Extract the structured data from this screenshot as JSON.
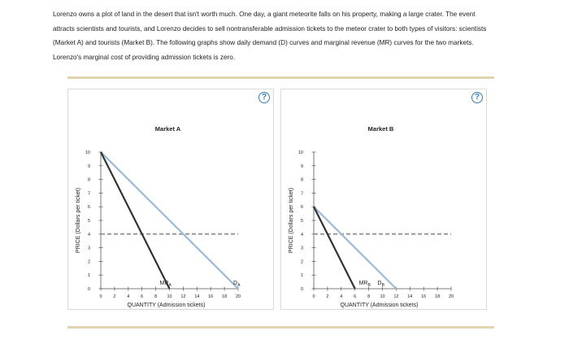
{
  "intro_lines": [
    "Lorenzo owns a plot of land in the desert that isn't worth much. One day, a giant meteorite falls on his property, making a large crater. The event",
    "attracts scientists and tourists, and Lorenzo decides to sell nontransferable admission tickets to the meteor crater to both types of visitors: scientists",
    "(Market A) and tourists (Market B). The following graphs show daily demand (D) curves and marginal revenue (MR) curves for the two markets.",
    "Lorenzo's marginal cost of providing admission tickets is zero."
  ],
  "help_label": "?",
  "colors": {
    "demand": "#9dbad5",
    "mr": "#333333",
    "price_line": "#9a9a9a",
    "axis": "#555555",
    "rule": "#e2d4ae",
    "help": "#3c78b4"
  },
  "chart_data": [
    {
      "type": "line",
      "title": "Market A",
      "xlabel": "QUANTITY (Admission tickets)",
      "ylabel": "PRICE (Dollars per ticket)",
      "xlim": [
        0,
        20
      ],
      "ylim": [
        0,
        10
      ],
      "xticks": [
        0,
        2,
        4,
        6,
        8,
        10,
        12,
        14,
        16,
        18,
        20
      ],
      "yticks": [
        0,
        1,
        2,
        3,
        4,
        5,
        6,
        7,
        8,
        9,
        10
      ],
      "grid": false,
      "series": [
        {
          "name": "D",
          "subscript": "A",
          "kind": "demand",
          "x": [
            0,
            20
          ],
          "y": [
            10,
            0
          ],
          "label_at": [
            20,
            0
          ]
        },
        {
          "name": "MR",
          "subscript": "A",
          "kind": "mr",
          "x": [
            0,
            10
          ],
          "y": [
            10,
            0
          ],
          "label_at": [
            10,
            0
          ]
        }
      ],
      "price_line": {
        "y": 4,
        "x": [
          0,
          20
        ],
        "style": "dashed"
      }
    },
    {
      "type": "line",
      "title": "Market B",
      "xlabel": "QUANTITY (Admission tickets)",
      "ylabel": "PRICE (Dollars per ticket)",
      "xlim": [
        0,
        20
      ],
      "ylim": [
        0,
        10
      ],
      "xticks": [
        0,
        2,
        4,
        6,
        8,
        10,
        12,
        14,
        16,
        18,
        20
      ],
      "yticks": [
        0,
        1,
        2,
        3,
        4,
        5,
        6,
        7,
        8,
        9,
        10
      ],
      "grid": false,
      "series": [
        {
          "name": "D",
          "subscript": "B",
          "kind": "demand",
          "x": [
            0,
            12
          ],
          "y": [
            6,
            0
          ],
          "label_at": [
            10,
            0
          ]
        },
        {
          "name": "MR",
          "subscript": "B",
          "kind": "mr",
          "x": [
            0,
            6
          ],
          "y": [
            6,
            0
          ],
          "label_at": [
            8,
            0
          ]
        }
      ],
      "price_line": {
        "y": 4,
        "x": [
          0,
          20
        ],
        "style": "dashed"
      }
    }
  ]
}
